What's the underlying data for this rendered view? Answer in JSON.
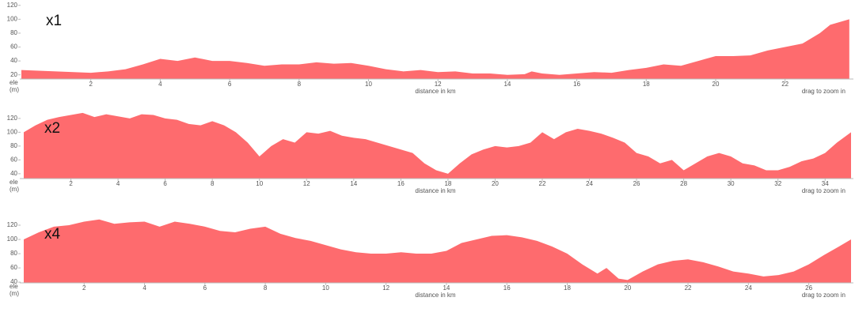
{
  "chart_data": [
    {
      "type": "area",
      "label": "x1",
      "x_label": "distance in km",
      "y_label": "ele",
      "y_unit": "(m)",
      "note": "drag to zoom in",
      "color": "#fe6b6e",
      "x": [
        0,
        0.5,
        1,
        1.5,
        2,
        2.5,
        3,
        3.5,
        4,
        4.5,
        5,
        5.5,
        6,
        6.5,
        7,
        7.5,
        8,
        8.5,
        9,
        9.5,
        10,
        10.5,
        11,
        11.5,
        12,
        12.5,
        13,
        13.5,
        14,
        14.5,
        14.7,
        15,
        15.5,
        16,
        16.5,
        17,
        17.5,
        18,
        18.5,
        19,
        19.5,
        20,
        20.5,
        21,
        21.5,
        22,
        22.5,
        23,
        23.3,
        23.85
      ],
      "values": [
        27,
        26,
        25,
        24,
        23,
        25,
        28,
        35,
        43,
        40,
        45,
        40,
        40,
        37,
        33,
        35,
        35,
        38,
        36,
        37,
        33,
        28,
        25,
        27,
        24,
        25,
        22,
        22,
        20,
        21,
        25,
        22,
        20,
        22,
        24,
        23,
        27,
        30,
        35,
        33,
        40,
        47,
        47,
        48,
        55,
        60,
        65,
        80,
        92,
        100
      ],
      "xlim": [
        0,
        23.9
      ],
      "ylim": [
        14,
        122
      ],
      "xticks": [
        2,
        4,
        6,
        8,
        10,
        12,
        14,
        16,
        18,
        20,
        22
      ],
      "yticks": [
        20,
        40,
        60,
        80,
        100,
        120
      ]
    },
    {
      "type": "area",
      "label": "x2",
      "x_label": "distance in km",
      "y_label": "ele",
      "y_unit": "(m)",
      "note": "drag to zoom in",
      "color": "#fe6b6e",
      "x": [
        0,
        0.5,
        1,
        1.5,
        2,
        2.5,
        3,
        3.5,
        4,
        4.5,
        5,
        5.5,
        6,
        6.5,
        7,
        7.5,
        8,
        8.5,
        9,
        9.5,
        10,
        10.5,
        11,
        11.5,
        12,
        12.5,
        13,
        13.5,
        14,
        14.5,
        15,
        15.5,
        16,
        16.5,
        17,
        17.5,
        18,
        18.5,
        19,
        19.5,
        20,
        20.5,
        21,
        21.5,
        22,
        22.5,
        23,
        23.5,
        24,
        24.5,
        25,
        25.5,
        26,
        26.5,
        27,
        27.5,
        28,
        28.5,
        29,
        29.5,
        30,
        30.5,
        31,
        31.5,
        32,
        32.5,
        33,
        33.5,
        34,
        34.5,
        35.1
      ],
      "values": [
        100,
        110,
        118,
        122,
        125,
        128,
        122,
        126,
        123,
        120,
        126,
        125,
        120,
        118,
        112,
        110,
        116,
        110,
        100,
        85,
        65,
        80,
        90,
        85,
        100,
        98,
        102,
        95,
        92,
        90,
        85,
        80,
        75,
        70,
        55,
        45,
        40,
        55,
        68,
        75,
        80,
        78,
        80,
        85,
        100,
        90,
        100,
        105,
        102,
        98,
        92,
        85,
        70,
        65,
        55,
        60,
        45,
        55,
        65,
        70,
        65,
        55,
        52,
        45,
        45,
        50,
        58,
        62,
        70,
        85,
        100
      ],
      "xlim": [
        0,
        35.1
      ],
      "ylim": [
        33,
        129
      ],
      "xticks": [
        2,
        4,
        6,
        8,
        10,
        12,
        14,
        16,
        18,
        20,
        22,
        24,
        26,
        28,
        30,
        32,
        34
      ],
      "yticks": [
        40,
        60,
        80,
        100,
        120
      ]
    },
    {
      "type": "area",
      "label": "x4",
      "x_label": "distance in km",
      "y_label": "ele",
      "y_unit": "(m)",
      "note": "drag to zoom in",
      "color": "#fe6b6e",
      "x": [
        0,
        0.5,
        1,
        1.5,
        2,
        2.5,
        3,
        3.5,
        4,
        4.5,
        5,
        5.5,
        6,
        6.5,
        7,
        7.5,
        8,
        8.5,
        9,
        9.5,
        10,
        10.5,
        11,
        11.5,
        12,
        12.5,
        13,
        13.5,
        14,
        14.5,
        15,
        15.5,
        16,
        16.5,
        17,
        17.5,
        18,
        18.5,
        19,
        19.3,
        19.7,
        20,
        20.5,
        21,
        21.5,
        22,
        22.5,
        23,
        23.5,
        24,
        24.5,
        25,
        25.5,
        26,
        26.5,
        27,
        27.4
      ],
      "values": [
        100,
        110,
        118,
        120,
        125,
        128,
        122,
        124,
        125,
        118,
        125,
        122,
        118,
        112,
        110,
        115,
        118,
        108,
        102,
        98,
        92,
        86,
        82,
        80,
        80,
        82,
        80,
        80,
        84,
        95,
        100,
        105,
        106,
        103,
        98,
        90,
        80,
        65,
        52,
        60,
        45,
        43,
        55,
        65,
        70,
        72,
        68,
        62,
        55,
        52,
        48,
        50,
        55,
        65,
        78,
        90,
        100
      ],
      "xlim": [
        0,
        27.4
      ],
      "ylim": [
        39,
        130
      ],
      "xticks": [
        2,
        4,
        6,
        8,
        10,
        12,
        14,
        16,
        18,
        20,
        22,
        24,
        26
      ],
      "yticks": [
        40,
        60,
        80,
        100,
        120
      ]
    }
  ]
}
